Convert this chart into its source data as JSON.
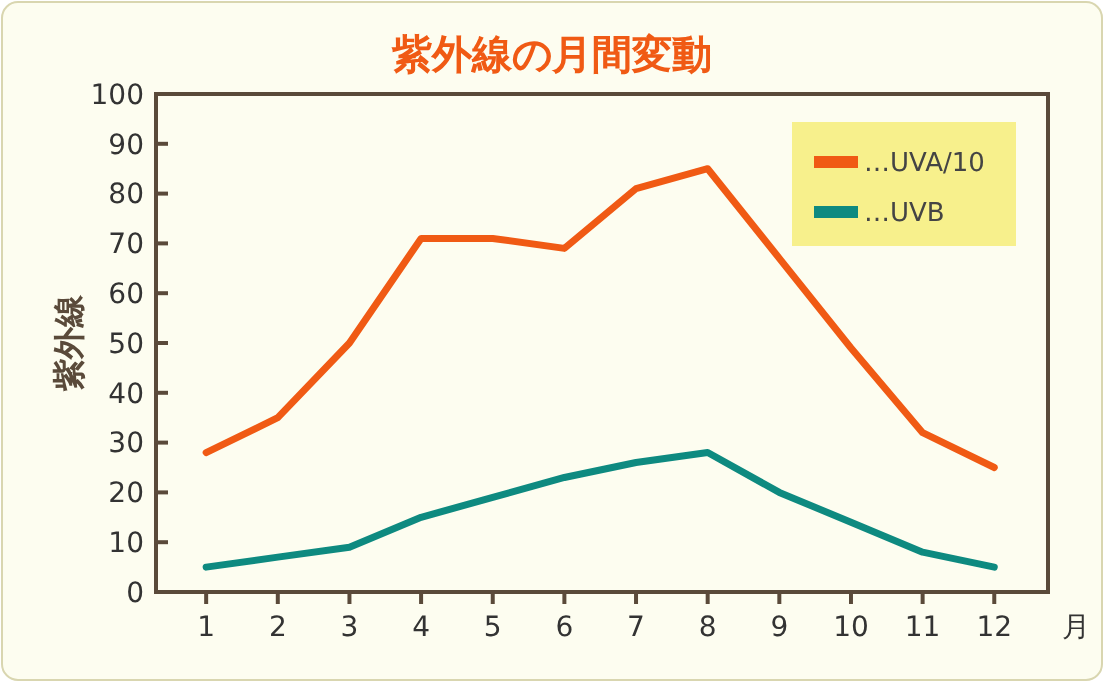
{
  "chart_data": {
    "type": "line",
    "title": "紫外線の月間変動",
    "xlabel": "月",
    "ylabel": "紫外線",
    "x": [
      1,
      2,
      3,
      4,
      5,
      6,
      7,
      8,
      9,
      10,
      11,
      12
    ],
    "xlim": [
      0.3,
      12.75
    ],
    "xticks": [
      1,
      2,
      3,
      4,
      5,
      6,
      7,
      8,
      9,
      10,
      11,
      12
    ],
    "ylim": [
      0,
      100
    ],
    "yticks": [
      0,
      10,
      20,
      30,
      40,
      50,
      60,
      70,
      80,
      90,
      100
    ],
    "series": [
      {
        "name": "…UVA/10",
        "color": "#f05a14",
        "values": [
          28,
          35,
          50,
          71,
          71,
          69,
          81,
          85,
          67,
          49,
          32,
          25
        ]
      },
      {
        "name": "…UVB",
        "color": "#0e8a80",
        "values": [
          5,
          7,
          9,
          15,
          19,
          23,
          26,
          28,
          20,
          14,
          8,
          5
        ]
      }
    ],
    "legend": "top right",
    "grid": false,
    "marker": "none",
    "line_style": "solid"
  }
}
